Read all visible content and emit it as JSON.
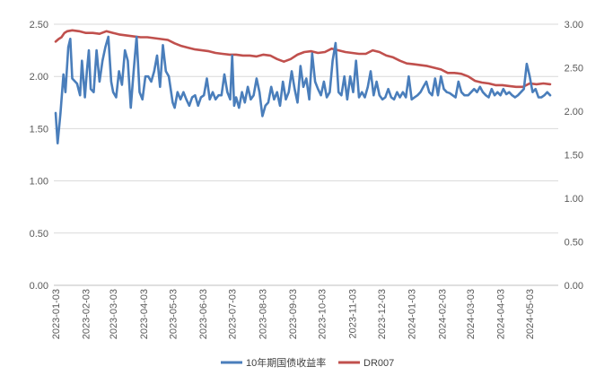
{
  "chart_data": {
    "type": "line",
    "title": "",
    "xlabel": "",
    "ylabel": "",
    "y_left": {
      "min": 0,
      "max": 2.5,
      "ticks": [
        "0.00",
        "0.50",
        "1.00",
        "1.50",
        "2.00",
        "2.50"
      ]
    },
    "y_right": {
      "min": 0,
      "max": 3.0,
      "ticks": [
        "0.00",
        "0.50",
        "1.00",
        "1.50",
        "2.00",
        "2.50",
        "3.00"
      ]
    },
    "x_ticks": [
      "2023-01-03",
      "2023-02-03",
      "2023-03-03",
      "2023-04-03",
      "2023-05-03",
      "2023-06-03",
      "2023-07-03",
      "2023-08-03",
      "2023-09-03",
      "2023-10-03",
      "2023-11-03",
      "2023-12-03",
      "2024-01-03",
      "2024-02-03",
      "2024-03-03",
      "2024-04-03",
      "2024-05-03"
    ],
    "grid": true,
    "legend_position": "bottom",
    "series": [
      {
        "name": "10年期国债收益率",
        "axis": "left",
        "color": "#4a7ebb",
        "points": [
          [
            "2023-01-03",
            1.65
          ],
          [
            "2023-01-05",
            1.36
          ],
          [
            "2023-01-08",
            1.65
          ],
          [
            "2023-01-11",
            2.02
          ],
          [
            "2023-01-13",
            1.85
          ],
          [
            "2023-01-16",
            2.28
          ],
          [
            "2023-01-18",
            2.36
          ],
          [
            "2023-01-20",
            1.98
          ],
          [
            "2023-01-25",
            1.93
          ],
          [
            "2023-01-28",
            1.82
          ],
          [
            "2023-01-30",
            2.15
          ],
          [
            "2023-02-02",
            1.8
          ],
          [
            "2023-02-04",
            2.05
          ],
          [
            "2023-02-06",
            2.25
          ],
          [
            "2023-02-08",
            1.88
          ],
          [
            "2023-02-11",
            1.85
          ],
          [
            "2023-02-14",
            2.25
          ],
          [
            "2023-02-17",
            1.95
          ],
          [
            "2023-02-20",
            2.15
          ],
          [
            "2023-02-23",
            2.28
          ],
          [
            "2023-02-26",
            2.38
          ],
          [
            "2023-03-01",
            1.95
          ],
          [
            "2023-03-03",
            1.85
          ],
          [
            "2023-03-06",
            1.8
          ],
          [
            "2023-03-09",
            2.05
          ],
          [
            "2023-03-12",
            1.92
          ],
          [
            "2023-03-15",
            2.25
          ],
          [
            "2023-03-18",
            2.15
          ],
          [
            "2023-03-21",
            1.7
          ],
          [
            "2023-03-24",
            2.05
          ],
          [
            "2023-03-27",
            2.38
          ],
          [
            "2023-03-30",
            1.85
          ],
          [
            "2023-04-02",
            1.78
          ],
          [
            "2023-04-05",
            2.0
          ],
          [
            "2023-04-08",
            2.0
          ],
          [
            "2023-04-11",
            1.95
          ],
          [
            "2023-04-14",
            2.05
          ],
          [
            "2023-04-17",
            2.2
          ],
          [
            "2023-04-20",
            1.9
          ],
          [
            "2023-04-23",
            2.3
          ],
          [
            "2023-04-26",
            2.05
          ],
          [
            "2023-04-29",
            2.0
          ],
          [
            "2023-05-03",
            1.75
          ],
          [
            "2023-05-05",
            1.7
          ],
          [
            "2023-05-08",
            1.85
          ],
          [
            "2023-05-11",
            1.78
          ],
          [
            "2023-05-14",
            1.85
          ],
          [
            "2023-05-17",
            1.78
          ],
          [
            "2023-05-20",
            1.72
          ],
          [
            "2023-05-23",
            1.8
          ],
          [
            "2023-05-26",
            1.82
          ],
          [
            "2023-05-29",
            1.72
          ],
          [
            "2023-06-01",
            1.8
          ],
          [
            "2023-06-04",
            1.82
          ],
          [
            "2023-06-07",
            1.98
          ],
          [
            "2023-06-10",
            1.78
          ],
          [
            "2023-06-13",
            1.85
          ],
          [
            "2023-06-16",
            1.78
          ],
          [
            "2023-06-19",
            1.82
          ],
          [
            "2023-06-22",
            1.82
          ],
          [
            "2023-06-25",
            2.02
          ],
          [
            "2023-06-28",
            1.85
          ],
          [
            "2023-07-01",
            1.78
          ],
          [
            "2023-07-03",
            2.2
          ],
          [
            "2023-07-05",
            1.72
          ],
          [
            "2023-07-07",
            1.8
          ],
          [
            "2023-07-10",
            1.7
          ],
          [
            "2023-07-13",
            1.85
          ],
          [
            "2023-07-16",
            1.75
          ],
          [
            "2023-07-19",
            1.9
          ],
          [
            "2023-07-22",
            1.78
          ],
          [
            "2023-07-25",
            1.82
          ],
          [
            "2023-07-28",
            1.98
          ],
          [
            "2023-07-31",
            1.85
          ],
          [
            "2023-08-03",
            1.62
          ],
          [
            "2023-08-06",
            1.72
          ],
          [
            "2023-08-09",
            1.75
          ],
          [
            "2023-08-12",
            1.9
          ],
          [
            "2023-08-15",
            1.78
          ],
          [
            "2023-08-18",
            1.85
          ],
          [
            "2023-08-21",
            1.72
          ],
          [
            "2023-08-24",
            1.95
          ],
          [
            "2023-08-27",
            1.78
          ],
          [
            "2023-08-30",
            1.85
          ],
          [
            "2023-09-02",
            2.05
          ],
          [
            "2023-09-05",
            1.88
          ],
          [
            "2023-09-08",
            1.75
          ],
          [
            "2023-09-11",
            2.1
          ],
          [
            "2023-09-14",
            1.9
          ],
          [
            "2023-09-17",
            1.98
          ],
          [
            "2023-09-20",
            1.78
          ],
          [
            "2023-09-23",
            2.22
          ],
          [
            "2023-09-26",
            1.95
          ],
          [
            "2023-09-29",
            1.88
          ],
          [
            "2023-10-02",
            1.82
          ],
          [
            "2023-10-05",
            1.95
          ],
          [
            "2023-10-08",
            1.8
          ],
          [
            "2023-10-11",
            1.85
          ],
          [
            "2023-10-14",
            2.15
          ],
          [
            "2023-10-17",
            2.32
          ],
          [
            "2023-10-20",
            1.85
          ],
          [
            "2023-10-23",
            1.82
          ],
          [
            "2023-10-26",
            2.0
          ],
          [
            "2023-10-29",
            1.78
          ],
          [
            "2023-11-01",
            2.0
          ],
          [
            "2023-11-04",
            1.85
          ],
          [
            "2023-11-07",
            2.15
          ],
          [
            "2023-11-10",
            1.8
          ],
          [
            "2023-11-13",
            1.85
          ],
          [
            "2023-11-16",
            1.8
          ],
          [
            "2023-11-19",
            1.9
          ],
          [
            "2023-11-22",
            2.05
          ],
          [
            "2023-11-25",
            1.82
          ],
          [
            "2023-11-28",
            1.95
          ],
          [
            "2023-12-01",
            1.82
          ],
          [
            "2023-12-04",
            1.78
          ],
          [
            "2023-12-07",
            1.8
          ],
          [
            "2023-12-10",
            1.88
          ],
          [
            "2023-12-13",
            1.8
          ],
          [
            "2023-12-16",
            1.78
          ],
          [
            "2023-12-19",
            1.85
          ],
          [
            "2023-12-22",
            1.8
          ],
          [
            "2023-12-25",
            1.85
          ],
          [
            "2023-12-28",
            1.8
          ],
          [
            "2023-12-31",
            2.0
          ],
          [
            "2024-01-03",
            1.78
          ],
          [
            "2024-01-06",
            1.8
          ],
          [
            "2024-01-09",
            1.82
          ],
          [
            "2024-01-12",
            1.85
          ],
          [
            "2024-01-15",
            1.9
          ],
          [
            "2024-01-18",
            1.95
          ],
          [
            "2024-01-21",
            1.85
          ],
          [
            "2024-01-24",
            1.82
          ],
          [
            "2024-01-27",
            1.98
          ],
          [
            "2024-01-30",
            1.82
          ],
          [
            "2024-02-02",
            2.0
          ],
          [
            "2024-02-05",
            1.88
          ],
          [
            "2024-02-08",
            1.85
          ],
          [
            "2024-02-11",
            1.84
          ],
          [
            "2024-02-14",
            1.82
          ],
          [
            "2024-02-17",
            1.8
          ],
          [
            "2024-02-20",
            1.95
          ],
          [
            "2024-02-23",
            1.85
          ],
          [
            "2024-02-26",
            1.82
          ],
          [
            "2024-03-01",
            1.82
          ],
          [
            "2024-03-04",
            1.85
          ],
          [
            "2024-03-07",
            1.88
          ],
          [
            "2024-03-10",
            1.85
          ],
          [
            "2024-03-13",
            1.9
          ],
          [
            "2024-03-16",
            1.85
          ],
          [
            "2024-03-19",
            1.82
          ],
          [
            "2024-03-22",
            1.8
          ],
          [
            "2024-03-25",
            1.88
          ],
          [
            "2024-03-28",
            1.82
          ],
          [
            "2024-03-31",
            1.85
          ],
          [
            "2024-04-03",
            1.82
          ],
          [
            "2024-04-06",
            1.88
          ],
          [
            "2024-04-09",
            1.83
          ],
          [
            "2024-04-12",
            1.85
          ],
          [
            "2024-04-15",
            1.82
          ],
          [
            "2024-04-18",
            1.8
          ],
          [
            "2024-04-21",
            1.82
          ],
          [
            "2024-04-24",
            1.85
          ],
          [
            "2024-04-27",
            1.88
          ],
          [
            "2024-04-30",
            2.12
          ],
          [
            "2024-05-03",
            2.0
          ],
          [
            "2024-05-06",
            1.85
          ],
          [
            "2024-05-09",
            1.88
          ],
          [
            "2024-05-12",
            1.8
          ],
          [
            "2024-05-15",
            1.8
          ],
          [
            "2024-05-18",
            1.82
          ],
          [
            "2024-05-21",
            1.85
          ],
          [
            "2024-05-24",
            1.82
          ]
        ]
      },
      {
        "name": "DR007",
        "axis": "right",
        "color": "#c0504d",
        "points": [
          [
            "2023-01-03",
            2.8
          ],
          [
            "2023-01-06",
            2.83
          ],
          [
            "2023-01-09",
            2.85
          ],
          [
            "2023-01-12",
            2.9
          ],
          [
            "2023-01-15",
            2.92
          ],
          [
            "2023-01-20",
            2.93
          ],
          [
            "2023-01-27",
            2.92
          ],
          [
            "2023-02-03",
            2.9
          ],
          [
            "2023-02-10",
            2.9
          ],
          [
            "2023-02-17",
            2.89
          ],
          [
            "2023-02-24",
            2.92
          ],
          [
            "2023-03-03",
            2.9
          ],
          [
            "2023-03-10",
            2.88
          ],
          [
            "2023-03-17",
            2.87
          ],
          [
            "2023-03-24",
            2.86
          ],
          [
            "2023-03-31",
            2.85
          ],
          [
            "2023-04-07",
            2.85
          ],
          [
            "2023-04-14",
            2.84
          ],
          [
            "2023-04-21",
            2.83
          ],
          [
            "2023-04-28",
            2.82
          ],
          [
            "2023-05-05",
            2.78
          ],
          [
            "2023-05-12",
            2.75
          ],
          [
            "2023-05-19",
            2.73
          ],
          [
            "2023-05-26",
            2.71
          ],
          [
            "2023-06-02",
            2.7
          ],
          [
            "2023-06-09",
            2.69
          ],
          [
            "2023-06-16",
            2.67
          ],
          [
            "2023-06-23",
            2.66
          ],
          [
            "2023-06-30",
            2.65
          ],
          [
            "2023-07-07",
            2.65
          ],
          [
            "2023-07-14",
            2.64
          ],
          [
            "2023-07-21",
            2.64
          ],
          [
            "2023-07-28",
            2.63
          ],
          [
            "2023-08-04",
            2.65
          ],
          [
            "2023-08-11",
            2.64
          ],
          [
            "2023-08-18",
            2.6
          ],
          [
            "2023-08-25",
            2.57
          ],
          [
            "2023-09-01",
            2.6
          ],
          [
            "2023-09-08",
            2.65
          ],
          [
            "2023-09-15",
            2.68
          ],
          [
            "2023-09-22",
            2.69
          ],
          [
            "2023-09-29",
            2.67
          ],
          [
            "2023-10-06",
            2.68
          ],
          [
            "2023-10-13",
            2.72
          ],
          [
            "2023-10-20",
            2.7
          ],
          [
            "2023-10-27",
            2.68
          ],
          [
            "2023-11-03",
            2.67
          ],
          [
            "2023-11-10",
            2.66
          ],
          [
            "2023-11-17",
            2.66
          ],
          [
            "2023-11-24",
            2.7
          ],
          [
            "2023-12-01",
            2.68
          ],
          [
            "2023-12-08",
            2.64
          ],
          [
            "2023-12-15",
            2.62
          ],
          [
            "2023-12-22",
            2.58
          ],
          [
            "2023-12-29",
            2.55
          ],
          [
            "2024-01-05",
            2.54
          ],
          [
            "2024-01-12",
            2.53
          ],
          [
            "2024-01-19",
            2.52
          ],
          [
            "2024-01-26",
            2.5
          ],
          [
            "2024-02-02",
            2.48
          ],
          [
            "2024-02-09",
            2.44
          ],
          [
            "2024-02-16",
            2.44
          ],
          [
            "2024-02-23",
            2.43
          ],
          [
            "2024-03-01",
            2.4
          ],
          [
            "2024-03-08",
            2.35
          ],
          [
            "2024-03-15",
            2.33
          ],
          [
            "2024-03-22",
            2.32
          ],
          [
            "2024-03-29",
            2.3
          ],
          [
            "2024-04-05",
            2.3
          ],
          [
            "2024-04-12",
            2.29
          ],
          [
            "2024-04-19",
            2.28
          ],
          [
            "2024-04-26",
            2.28
          ],
          [
            "2024-05-03",
            2.32
          ],
          [
            "2024-05-10",
            2.31
          ],
          [
            "2024-05-17",
            2.32
          ],
          [
            "2024-05-24",
            2.31
          ]
        ]
      }
    ]
  }
}
